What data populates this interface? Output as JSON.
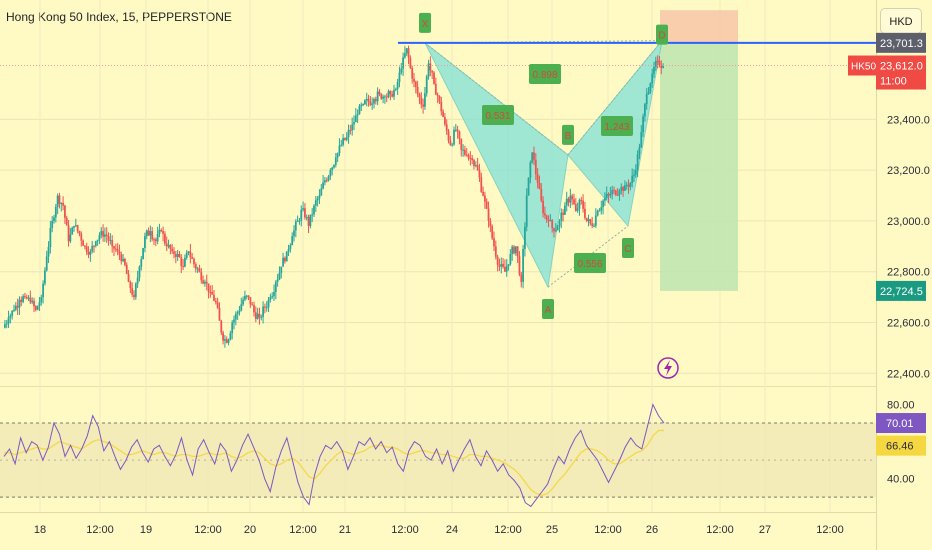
{
  "header": {
    "title": "Hong Kong 50 Index, 15, PEPPERSTONE",
    "currency": "HKD"
  },
  "colors": {
    "background": "#fff9c4",
    "up_candle": "#26a69a",
    "down_candle": "#ef5350",
    "pattern_fill": "#80e0d8",
    "pattern_label_bg": "#4caf50",
    "pattern_label_text": "#d34a3a",
    "blue_line": "#2962ff",
    "rsi_line": "#7e57c2",
    "rsi_ma_line": "#f5d742",
    "stop_zone": "#f8c3a8",
    "target_zone": "#bde4b0",
    "price_badge_red": "#f04a45",
    "price_badge_green": "#1a9a80",
    "price_badge_grey": "#5d606b"
  },
  "chart_data": [
    {
      "type": "line",
      "name": "price",
      "y_ticks": [
        "23,400.0",
        "23,200.0",
        "23,000.0",
        "22,800.0",
        "22,600.0",
        "22,400.0"
      ],
      "y_tick_values": [
        23400,
        23200,
        23000,
        22800,
        22600,
        22400
      ],
      "x_ticks": [
        "18",
        "12:00",
        "19",
        "12:00",
        "20",
        "12:00",
        "21",
        "12:00",
        "24",
        "12:00",
        "25",
        "12:00",
        "26",
        "12:00",
        "27",
        "12:00"
      ],
      "ylim": [
        22350,
        23870
      ],
      "close_path": [
        22580,
        22620,
        22650,
        22690,
        22700,
        22680,
        22650,
        22700,
        22860,
        23000,
        23100,
        23060,
        22920,
        22980,
        22950,
        22900,
        22880,
        22920,
        22960,
        22940,
        22900,
        22880,
        22850,
        22760,
        22700,
        22820,
        22940,
        22960,
        22920,
        22960,
        22900,
        22880,
        22870,
        22820,
        22880,
        22830,
        22800,
        22760,
        22720,
        22680,
        22560,
        22520,
        22600,
        22640,
        22690,
        22700,
        22640,
        22620,
        22660,
        22700,
        22760,
        22820,
        22880,
        22940,
        23000,
        23050,
        22980,
        23060,
        23100,
        23160,
        23200,
        23250,
        23300,
        23330,
        23380,
        23420,
        23460,
        23470,
        23480,
        23500,
        23490,
        23500,
        23520,
        23600,
        23680,
        23560,
        23500,
        23450,
        23620,
        23540,
        23470,
        23380,
        23300,
        23360,
        23280,
        23260,
        23240,
        23200,
        23100,
        23000,
        22900,
        22820,
        22800,
        22870,
        22900,
        22760,
        23100,
        23270,
        23150,
        23030,
        23000,
        22960,
        23000,
        23060,
        23100,
        23040,
        23080,
        23000,
        22980,
        23040,
        23080,
        23100,
        23120,
        23120,
        23140,
        23150,
        23200,
        23350,
        23500,
        23580,
        23630,
        23612
      ],
      "pattern_points": [
        {
          "label": "X",
          "price": 23701
        },
        {
          "label": "A",
          "price": 22740
        },
        {
          "label": "B",
          "price": 23260
        },
        {
          "label": "C",
          "price": 22980
        },
        {
          "label": "D",
          "price": 23710
        }
      ],
      "ratio_labels": [
        "0.898",
        "0.531",
        "0.556",
        "1.243"
      ],
      "resistance_level": 23701.3,
      "stop_zone": [
        23701.3,
        23830
      ],
      "target_zone": [
        22724.5,
        23701.3
      ],
      "price_badges": [
        {
          "text": "23,701.3",
          "tag": "",
          "kind": "grey"
        },
        {
          "text": "23,612.0",
          "tag": "HK50",
          "sub": "11:00",
          "kind": "red"
        },
        {
          "text": "22,724.5",
          "tag": "",
          "kind": "green"
        }
      ]
    },
    {
      "type": "line",
      "name": "RSI",
      "y_ticks": [
        "80.00",
        "40.00"
      ],
      "ylim": [
        22,
        90
      ],
      "bands": [
        70,
        30
      ],
      "current_values": [
        "70.01",
        "66.46"
      ],
      "rsi": [
        52,
        56,
        48,
        62,
        54,
        60,
        58,
        50,
        57,
        70,
        64,
        52,
        58,
        51,
        56,
        63,
        74,
        68,
        55,
        60,
        52,
        45,
        50,
        57,
        61,
        54,
        49,
        56,
        58,
        52,
        47,
        53,
        62,
        50,
        42,
        56,
        61,
        54,
        48,
        59,
        55,
        44,
        50,
        58,
        64,
        57,
        50,
        40,
        33,
        46,
        55,
        62,
        50,
        38,
        30,
        26,
        42,
        52,
        58,
        56,
        60,
        55,
        45,
        52,
        60,
        58,
        62,
        56,
        60,
        54,
        57,
        48,
        44,
        55,
        60,
        58,
        52,
        50,
        56,
        48,
        55,
        44,
        50,
        56,
        61,
        52,
        47,
        55,
        50,
        44,
        48,
        42,
        39,
        35,
        27,
        25,
        29,
        33,
        37,
        45,
        52,
        48,
        56,
        62,
        66,
        58,
        54,
        50,
        44,
        38,
        44,
        50,
        57,
        62,
        58,
        56,
        68,
        80,
        74,
        70
      ],
      "rsi_ma": [
        54,
        54,
        53,
        54,
        55,
        56,
        57,
        56,
        56,
        58,
        60,
        59,
        58,
        57,
        56,
        58,
        60,
        61,
        60,
        59,
        57,
        55,
        53,
        53,
        54,
        55,
        54,
        53,
        54,
        54,
        53,
        52,
        53,
        53,
        52,
        52,
        53,
        54,
        53,
        53,
        54,
        52,
        51,
        52,
        54,
        55,
        54,
        51,
        48,
        47,
        48,
        50,
        51,
        49,
        45,
        41,
        40,
        43,
        47,
        50,
        53,
        55,
        54,
        53,
        54,
        55,
        57,
        58,
        58,
        57,
        57,
        56,
        54,
        53,
        54,
        55,
        55,
        54,
        54,
        53,
        53,
        52,
        51,
        51,
        53,
        53,
        52,
        52,
        51,
        50,
        49,
        47,
        45,
        42,
        38,
        34,
        32,
        31,
        32,
        35,
        39,
        42,
        46,
        50,
        54,
        56,
        56,
        55,
        53,
        50,
        48,
        48,
        50,
        52,
        54,
        55,
        58,
        63,
        66,
        66
      ]
    }
  ]
}
